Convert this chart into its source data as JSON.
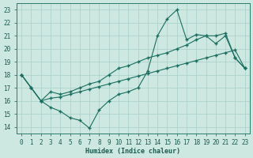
{
  "xlabel": "Humidex (Indice chaleur)",
  "background_color": "#cce8e0",
  "grid_color": "#a8cfc8",
  "line_color": "#1a6e60",
  "xlim": [
    -0.5,
    23.5
  ],
  "ylim": [
    13.5,
    23.5
  ],
  "xticks": [
    0,
    1,
    2,
    3,
    4,
    5,
    6,
    7,
    8,
    9,
    10,
    11,
    12,
    13,
    14,
    15,
    16,
    17,
    18,
    19,
    20,
    21,
    22,
    23
  ],
  "yticks": [
    14,
    15,
    16,
    17,
    18,
    19,
    20,
    21,
    22,
    23
  ],
  "line1_x": [
    0,
    1,
    2,
    3,
    4,
    5,
    6,
    7,
    8,
    9,
    10,
    11,
    12,
    13,
    14,
    15,
    16,
    17,
    18,
    19,
    20,
    21,
    22,
    23
  ],
  "line1_y": [
    18.0,
    17.0,
    16.0,
    15.5,
    15.2,
    14.7,
    14.5,
    13.9,
    15.3,
    16.0,
    16.5,
    16.7,
    17.0,
    18.3,
    21.0,
    22.3,
    23.0,
    20.7,
    21.1,
    21.0,
    20.4,
    21.0,
    19.3,
    18.5
  ],
  "line2_x": [
    0,
    1,
    2,
    3,
    4,
    5,
    6,
    7,
    8,
    9,
    10,
    11,
    12,
    13,
    14,
    15,
    16,
    17,
    18,
    19,
    20,
    21,
    22,
    23
  ],
  "line2_y": [
    18.0,
    17.0,
    16.0,
    16.7,
    16.5,
    16.7,
    17.0,
    17.3,
    17.5,
    18.0,
    18.5,
    18.7,
    19.0,
    19.3,
    19.5,
    19.7,
    20.0,
    20.3,
    20.7,
    21.0,
    21.0,
    21.2,
    19.3,
    18.5
  ],
  "line3_x": [
    0,
    1,
    2,
    3,
    4,
    5,
    6,
    7,
    8,
    9,
    10,
    11,
    12,
    13,
    14,
    15,
    16,
    17,
    18,
    19,
    20,
    21,
    22,
    23
  ],
  "line3_y": [
    18.0,
    17.0,
    16.0,
    16.2,
    16.3,
    16.5,
    16.7,
    16.9,
    17.1,
    17.3,
    17.5,
    17.7,
    17.9,
    18.1,
    18.3,
    18.5,
    18.7,
    18.9,
    19.1,
    19.3,
    19.5,
    19.7,
    19.9,
    18.5
  ]
}
